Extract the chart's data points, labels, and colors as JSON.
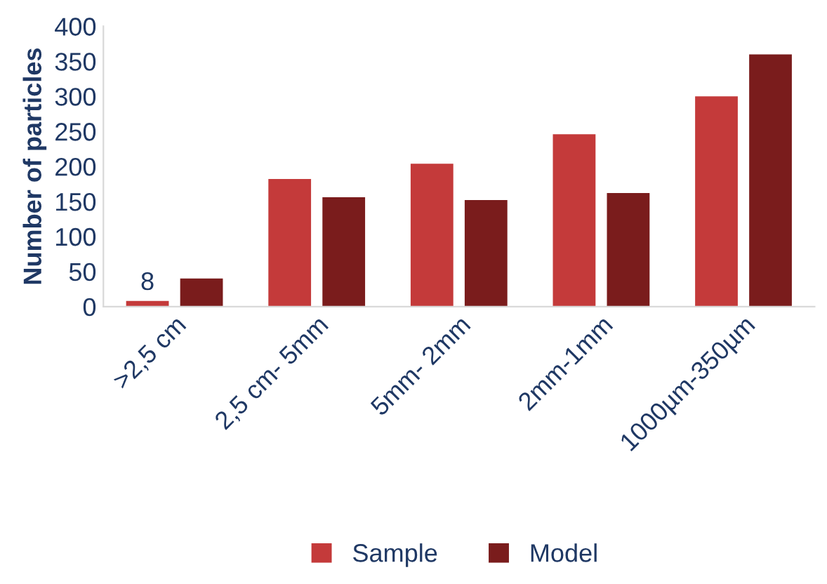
{
  "chart_data": {
    "type": "bar",
    "ylabel": "Number of particles",
    "categories": [
      ">2,5 cm",
      "2,5 cm- 5mm",
      "5mm- 2mm",
      "2mm-1mm",
      "1000µm-350µm"
    ],
    "series": [
      {
        "name": "Sample",
        "color": "#c43a3a",
        "values": [
          8,
          182,
          204,
          246,
          300
        ],
        "value_labels": [
          "8",
          null,
          null,
          null,
          null
        ]
      },
      {
        "name": "Model",
        "color": "#7a1c1c",
        "values": [
          40,
          156,
          152,
          162,
          360
        ]
      }
    ],
    "ylim": [
      0,
      400
    ],
    "yticks": [
      0,
      50,
      100,
      150,
      200,
      250,
      300,
      350,
      400
    ],
    "grid": false,
    "legend": "bottom"
  }
}
